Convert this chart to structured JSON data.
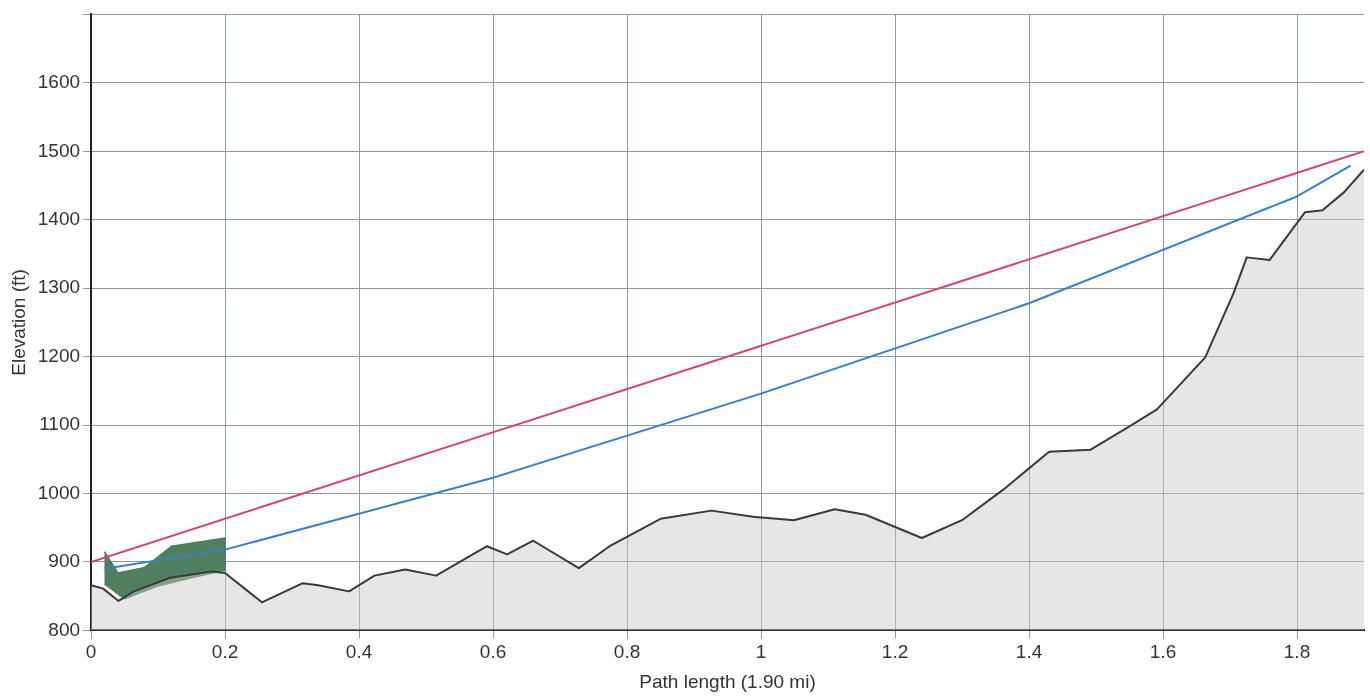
{
  "chart_data": {
    "type": "line",
    "xlabel": "Path length (1.90 mi)",
    "ylabel": "Elevation (ft)",
    "xlim": [
      0,
      1.9
    ],
    "xticks": [
      0,
      0.2,
      0.4,
      0.6,
      0.8,
      1.0,
      1.2,
      1.4,
      1.6,
      1.8
    ],
    "ylim": [
      800,
      1700
    ],
    "yticks": [
      800,
      900,
      1000,
      1100,
      1200,
      1300,
      1400,
      1500,
      1600,
      {
        "value": 1700,
        "label": null
      }
    ],
    "grid": true,
    "legend": false,
    "marker": "none",
    "line_style": "solid",
    "series": [
      {
        "type": "area",
        "color": "#3a3a3a",
        "x": [
          0,
          0.018,
          0.041,
          0.064,
          0.118,
          0.179,
          0.2,
          0.255,
          0.316,
          0.339,
          0.385,
          0.423,
          0.469,
          0.515,
          0.591,
          0.621,
          0.66,
          0.728,
          0.774,
          0.85,
          0.926,
          0.988,
          1.049,
          1.11,
          1.156,
          1.24,
          1.3,
          1.362,
          1.43,
          1.492,
          1.553,
          1.591,
          1.663,
          1.705,
          1.725,
          1.759,
          1.812,
          1.838,
          1.87,
          1.9
        ],
        "values": [
          866,
          861,
          843,
          857,
          877,
          886,
          884,
          841,
          869,
          866,
          857,
          880,
          889,
          880,
          923,
          911,
          931,
          891,
          923,
          963,
          975,
          966,
          961,
          977,
          969,
          935,
          961,
          1006,
          1061,
          1064,
          1100,
          1123,
          1199,
          1292,
          1345,
          1341,
          1411,
          1414,
          1440,
          1473
        ]
      },
      {
        "type": "area",
        "color": "#4f7f5f",
        "x": [
          0.02,
          0.04,
          0.08,
          0.12,
          0.2,
          0.2,
          0.15,
          0.1,
          0.05,
          0.02
        ],
        "values": [
          915,
          884,
          892,
          923,
          935,
          888,
          877,
          865,
          846,
          868
        ]
      },
      {
        "color": "#d04870",
        "x": [
          0,
          1.9
        ],
        "values": [
          900,
          1500
        ]
      },
      {
        "color": "#3d7fc0",
        "x": [
          0.02,
          0.2,
          0.6,
          1.0,
          1.4,
          1.8,
          1.88
        ],
        "values": [
          890,
          918,
          1023,
          1146,
          1278,
          1434,
          1479
        ]
      }
    ]
  }
}
